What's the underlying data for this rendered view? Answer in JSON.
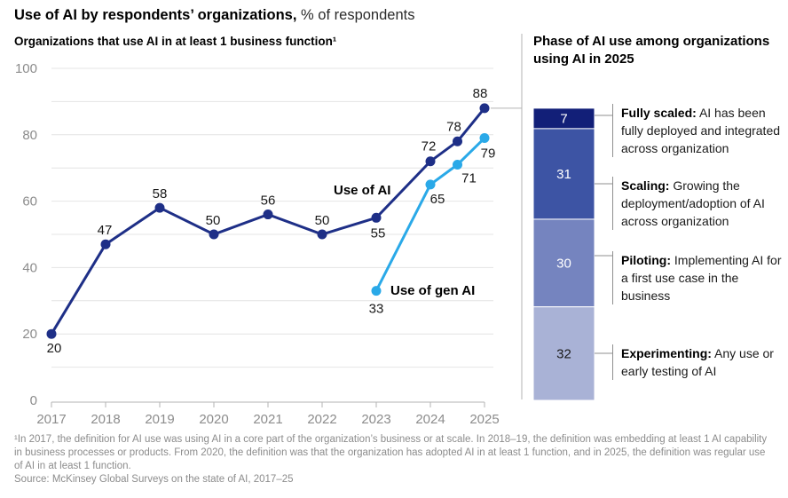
{
  "title": {
    "bold": "Use of AI by respondents’ organizations,",
    "regular": "% of respondents"
  },
  "left_panel": {
    "subtitle": "Organizations that use AI in at least 1 business function¹"
  },
  "right_panel": {
    "title": "Phase of AI use among organizations using AI in 2025"
  },
  "footnote": {
    "note": "¹In 2017, the definition for AI use was using AI in a core part of the organization’s business or at scale. In 2018–19, the definition was embedding at least 1 AI capability in business processes or products. From 2020, the definition was that the organization has adopted AI in at least 1 function, and in 2025, the definition was regular use of AI in at least 1 function.",
    "source": "Source: McKinsey Global Surveys on the state of AI, 2017–25"
  },
  "chart_data": [
    {
      "type": "line",
      "title": "Organizations that use AI in at least 1 business function",
      "xlabel": "",
      "ylabel": "% of respondents",
      "ylim": [
        0,
        100
      ],
      "x_ticks": [
        2017,
        2018,
        2019,
        2020,
        2021,
        2022,
        2023,
        2024,
        2025
      ],
      "y_ticks": [
        0,
        20,
        40,
        60,
        80,
        100
      ],
      "grid": "horizontal gridlines every 10, labels every 20",
      "series": [
        {
          "name": "Use of AI",
          "color": "#1e2f87",
          "x": [
            2017,
            2018,
            2019,
            2020,
            2021,
            2022,
            2023,
            2024,
            2024.5,
            2025
          ],
          "values": [
            20,
            47,
            58,
            50,
            56,
            50,
            55,
            72,
            78,
            88
          ]
        },
        {
          "name": "Use of gen AI",
          "color": "#2aa9e8",
          "x": [
            2023,
            2024,
            2024.5,
            2025
          ],
          "values": [
            33,
            65,
            71,
            79
          ]
        }
      ]
    },
    {
      "type": "stacked-bar",
      "title": "Phase of AI use among organizations using AI in 2025",
      "total": 100,
      "legend_position": "right",
      "segments": [
        {
          "term": "Fully scaled:",
          "desc": "AI has been fully deployed and integrated across organization",
          "value": 7,
          "color": "#121f78",
          "value_text_color": "#ffffff"
        },
        {
          "term": "Scaling:",
          "desc": "Growing the deployment/adoption of AI across organization",
          "value": 31,
          "color": "#3d54a4",
          "value_text_color": "#ffffff"
        },
        {
          "term": "Piloting:",
          "desc": "Implementing AI for a first use case in the business",
          "value": 30,
          "color": "#7584bf",
          "value_text_color": "#ffffff"
        },
        {
          "term": "Experimenting:",
          "desc": "Any use or early testing of AI",
          "value": 32,
          "color": "#a9b2d6",
          "value_text_color": "#1a1a1a"
        }
      ]
    }
  ]
}
